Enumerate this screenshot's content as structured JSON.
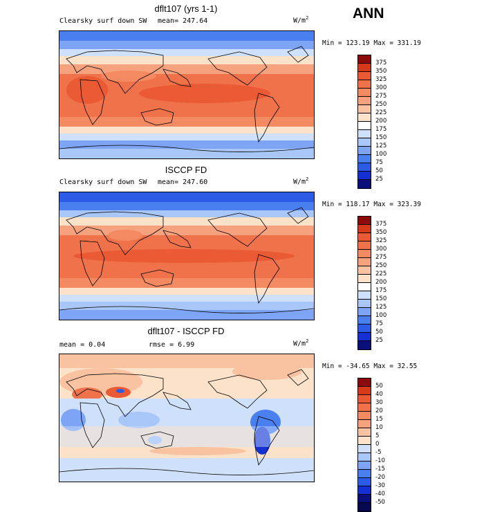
{
  "season": "ANN",
  "colors": {
    "top_scale": [
      "#0a0f7a",
      "#1530d0",
      "#2c5be6",
      "#4a7ff0",
      "#7ea5f5",
      "#a9c6f8",
      "#cfe0fb",
      "#ffffff",
      "#fbe2c8",
      "#f9c2a0",
      "#f6a27e",
      "#f38a62",
      "#ef724a",
      "#ea5a34",
      "#d43a1a",
      "#8b0a0a"
    ],
    "diff_scale": [
      "#0a0f7a",
      "#1530d0",
      "#2c5be6",
      "#4a7ff0",
      "#7ea5f5",
      "#a9c6f8",
      "#cfe0fb",
      "#ffffff",
      "#fbe2c8",
      "#f9c2a0",
      "#f6a27e",
      "#f38a62",
      "#ef724a",
      "#ea5a34",
      "#d43a1a",
      "#8b0a0a"
    ]
  },
  "panels": [
    {
      "title": "dflt107 (yrs 1-1)",
      "left_label": "Clearsky surf down SW",
      "mid_label": "mean= 247.64",
      "units_base": "W/m",
      "units_exp": "2",
      "minmax": "Min = 123.19 Max = 331.19",
      "levels": [
        "375",
        "350",
        "325",
        "300",
        "275",
        "250",
        "225",
        "200",
        "175",
        "150",
        "125",
        "100",
        "75",
        "50",
        "25"
      ]
    },
    {
      "title": "ISCCP FD",
      "left_label": "Clearsky surf down SW",
      "mid_label": "mean= 247.60",
      "units_base": "W/m",
      "units_exp": "2",
      "minmax": "Min = 118.17 Max = 323.39",
      "levels": [
        "375",
        "350",
        "325",
        "300",
        "275",
        "250",
        "225",
        "200",
        "175",
        "150",
        "125",
        "100",
        "75",
        "50",
        "25"
      ]
    },
    {
      "title": "dflt107 - ISCCP FD",
      "left_label": "mean =   0.04",
      "mid_label": "rmse =   6.99",
      "units_base": "W/m",
      "units_exp": "2",
      "minmax": "Min = -34.65 Max =  32.55",
      "levels": [
        "50",
        "40",
        "30",
        "20",
        "15",
        "10",
        "5",
        "0",
        "-5",
        "-10",
        "-15",
        "-20",
        "-30",
        "-40",
        "-50"
      ]
    }
  ]
}
